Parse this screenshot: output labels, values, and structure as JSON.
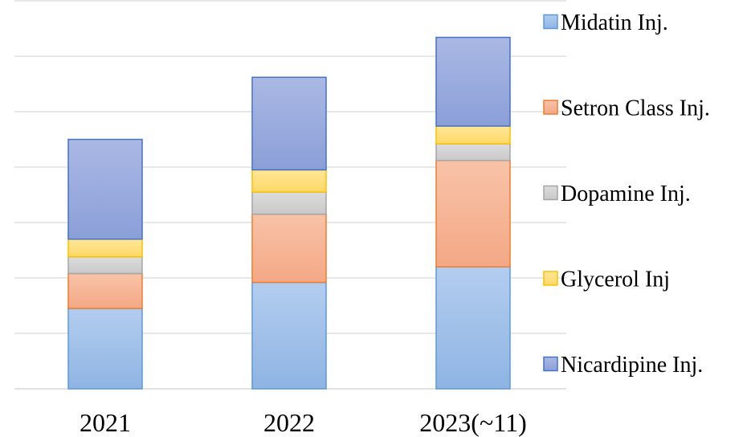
{
  "chart_data": {
    "type": "bar",
    "stacked": true,
    "title": "",
    "xlabel": "",
    "ylabel": "",
    "categories": [
      "2021",
      "2022",
      "2023(~11)"
    ],
    "ylim": [
      0,
      7
    ],
    "gridlines": [
      1,
      2,
      3,
      4,
      5,
      6,
      7
    ],
    "grid": true,
    "y_tick_labels_shown": false,
    "legend_position": "right",
    "series": [
      {
        "name": "Midatin Inj.",
        "values": [
          1.45,
          1.92,
          2.2
        ],
        "color": "#8fb4e3",
        "color_light": "#b3cdef",
        "border": "#5b9bd5"
      },
      {
        "name": "Setron Class Inj.",
        "values": [
          0.63,
          1.23,
          1.92
        ],
        "color": "#f4a885",
        "color_light": "#f8c3a8",
        "border": "#ed7d31"
      },
      {
        "name": "Dopamine Inj.",
        "values": [
          0.3,
          0.4,
          0.3
        ],
        "color": "#c9c9c9",
        "color_light": "#dcdcdc",
        "border": "#a5a5a5"
      },
      {
        "name": "Glycerol Inj",
        "values": [
          0.32,
          0.4,
          0.32
        ],
        "color": "#ffd966",
        "color_light": "#ffe699",
        "border": "#ffc000"
      },
      {
        "name": "Nicardipine Inj.",
        "values": [
          1.8,
          1.67,
          1.6
        ],
        "color": "#8b9fd8",
        "color_light": "#aab8e4",
        "border": "#4472c4"
      }
    ]
  }
}
